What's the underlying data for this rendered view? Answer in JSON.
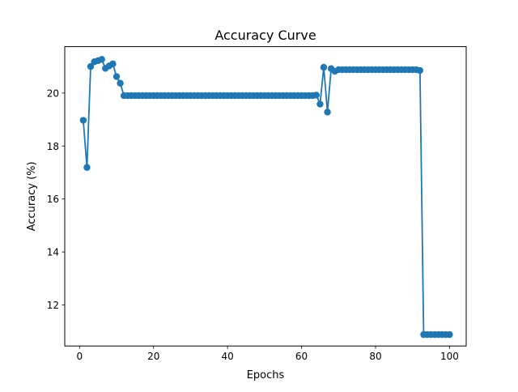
{
  "chart_data": {
    "type": "line",
    "title": "Accuracy Curve",
    "xlabel": "Epochs",
    "ylabel": "Accuracy (%)",
    "xlim": [
      -4,
      104.5
    ],
    "ylim": [
      10.45,
      21.75
    ],
    "xticks": [
      0,
      20,
      40,
      60,
      80,
      100
    ],
    "yticks": [
      12,
      14,
      16,
      18,
      20
    ],
    "grid": false,
    "marker": "circle",
    "color": "#1f77b4",
    "series": [
      {
        "x": [
          1,
          2,
          3,
          4,
          5,
          6,
          7,
          8,
          9,
          10,
          11,
          12,
          13,
          14,
          15,
          16,
          17,
          18,
          19,
          20,
          21,
          22,
          23,
          24,
          25,
          26,
          27,
          28,
          29,
          30,
          31,
          32,
          33,
          34,
          35,
          36,
          37,
          38,
          39,
          40,
          41,
          42,
          43,
          44,
          45,
          46,
          47,
          48,
          49,
          50,
          51,
          52,
          53,
          54,
          55,
          56,
          57,
          58,
          59,
          60,
          61,
          62,
          63,
          64,
          65,
          66,
          67,
          68,
          69,
          70,
          71,
          72,
          73,
          74,
          75,
          76,
          77,
          78,
          79,
          80,
          81,
          82,
          83,
          84,
          85,
          86,
          87,
          88,
          89,
          90,
          91,
          92,
          93,
          94,
          95,
          96,
          97,
          98,
          99,
          100
        ],
        "values": [
          18.97,
          17.19,
          21.0,
          21.18,
          21.22,
          21.27,
          20.93,
          21.02,
          21.1,
          20.62,
          20.37,
          19.9,
          19.9,
          19.9,
          19.9,
          19.9,
          19.9,
          19.9,
          19.9,
          19.9,
          19.9,
          19.9,
          19.9,
          19.9,
          19.9,
          19.9,
          19.9,
          19.9,
          19.9,
          19.9,
          19.9,
          19.9,
          19.9,
          19.9,
          19.9,
          19.9,
          19.9,
          19.9,
          19.9,
          19.9,
          19.9,
          19.9,
          19.9,
          19.9,
          19.9,
          19.9,
          19.9,
          19.9,
          19.9,
          19.9,
          19.9,
          19.9,
          19.9,
          19.9,
          19.9,
          19.9,
          19.9,
          19.9,
          19.9,
          19.9,
          19.9,
          19.9,
          19.9,
          19.92,
          19.58,
          20.97,
          19.28,
          20.92,
          20.82,
          20.88,
          20.88,
          20.88,
          20.88,
          20.88,
          20.88,
          20.88,
          20.88,
          20.88,
          20.88,
          20.88,
          20.88,
          20.88,
          20.88,
          20.88,
          20.88,
          20.88,
          20.88,
          20.88,
          20.88,
          20.88,
          20.88,
          20.85,
          10.88,
          10.88,
          10.88,
          10.88,
          10.88,
          10.88,
          10.88,
          10.88
        ]
      }
    ]
  }
}
